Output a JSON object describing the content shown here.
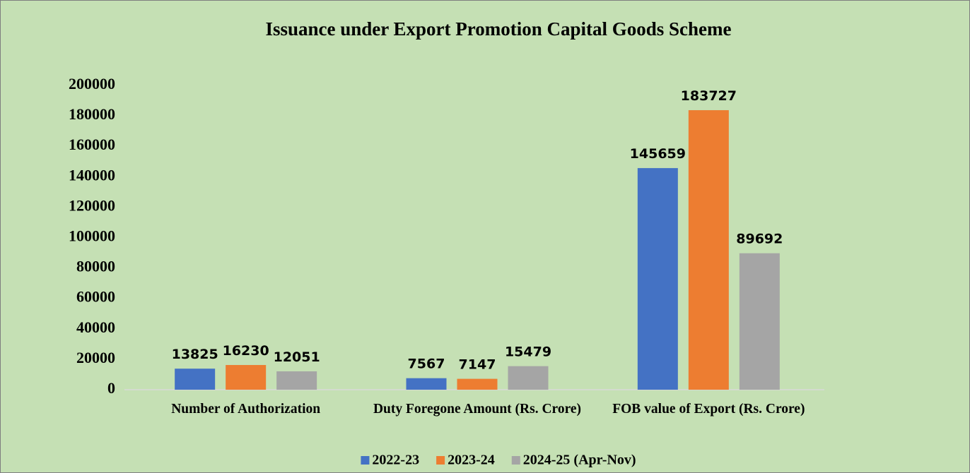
{
  "chart_data": {
    "type": "bar",
    "title": "Issuance under Export Promotion Capital Goods Scheme",
    "categories": [
      "Number of Authorization",
      "Duty Foregone Amount (Rs. Crore)",
      "FOB value of Export (Rs. Crore)"
    ],
    "series": [
      {
        "name": "2022-23",
        "color": "#4472c4",
        "values": [
          13825,
          7567,
          145659
        ]
      },
      {
        "name": "2023-24",
        "color": "#ed7d31",
        "values": [
          16230,
          7147,
          183727
        ]
      },
      {
        "name": "2024-25 (Apr-Nov)",
        "color": "#a5a5a5",
        "values": [
          12051,
          15479,
          89692
        ]
      }
    ],
    "ylim": [
      0,
      200000
    ],
    "yticks": [
      0,
      20000,
      40000,
      60000,
      80000,
      100000,
      120000,
      140000,
      160000,
      180000,
      200000
    ],
    "grid": false,
    "legend": "bottom"
  }
}
